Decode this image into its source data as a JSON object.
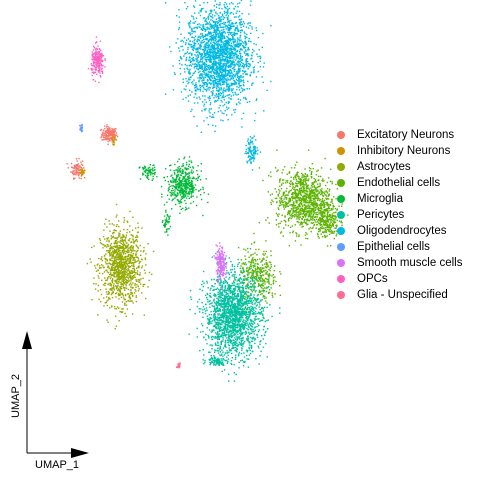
{
  "chart_data": {
    "type": "scatter",
    "xlabel": "UMAP_1",
    "ylabel": "UMAP_2",
    "grid": false,
    "legend_position": "right",
    "series": [
      {
        "name": "Excitatory Neurons",
        "color": "#F8766D",
        "clusters": [
          {
            "cx": -7.8,
            "cy": 6.9,
            "rx": 0.6,
            "ry": 0.6,
            "n": 160
          },
          {
            "cx": -10.6,
            "cy": 3.9,
            "rx": 0.45,
            "ry": 0.7,
            "n": 90
          }
        ]
      },
      {
        "name": "Inhibitory Neurons",
        "color": "#D39200",
        "clusters": [
          {
            "cx": -10.1,
            "cy": 3.6,
            "rx": 0.2,
            "ry": 0.3,
            "n": 25
          },
          {
            "cx": -7.4,
            "cy": 6.4,
            "rx": 0.2,
            "ry": 0.3,
            "n": 20
          }
        ]
      },
      {
        "name": "Astrocytes",
        "color": "#93AA00",
        "clusters": [
          {
            "cx": -6.8,
            "cy": -4.6,
            "rx": 1.6,
            "ry": 3.0,
            "n": 1100
          }
        ]
      },
      {
        "name": "Endothelial cells",
        "color": "#5BB300",
        "clusters": [
          {
            "cx": 8.8,
            "cy": 1.2,
            "rx": 2.1,
            "ry": 2.4,
            "n": 1000
          },
          {
            "cx": 10.8,
            "cy": -0.6,
            "rx": 0.9,
            "ry": 1.3,
            "n": 250
          },
          {
            "cx": 4.9,
            "cy": -5.5,
            "rx": 1.5,
            "ry": 2.1,
            "n": 350
          }
        ]
      },
      {
        "name": "Microglia",
        "color": "#00BA38",
        "clusters": [
          {
            "cx": -1.5,
            "cy": 2.5,
            "rx": 1.2,
            "ry": 1.6,
            "n": 450
          },
          {
            "cx": -4.5,
            "cy": 3.6,
            "rx": 0.6,
            "ry": 0.6,
            "n": 70
          },
          {
            "cx": -2.9,
            "cy": -0.8,
            "rx": 0.3,
            "ry": 0.8,
            "n": 40
          }
        ]
      },
      {
        "name": "Pericytes",
        "color": "#00C19F",
        "clusters": [
          {
            "cx": 2.8,
            "cy": -8.8,
            "rx": 2.2,
            "ry": 3.2,
            "n": 1800
          },
          {
            "cx": 1.4,
            "cy": -12.8,
            "rx": 0.8,
            "ry": 0.35,
            "n": 80
          }
        ]
      },
      {
        "name": "Oligodendrocytes",
        "color": "#00B9E3",
        "clusters": [
          {
            "cx": 1.5,
            "cy": 13.7,
            "rx": 2.5,
            "ry": 4.0,
            "n": 2200
          },
          {
            "cx": 4.4,
            "cy": 5.5,
            "rx": 0.5,
            "ry": 1.0,
            "n": 100
          }
        ]
      },
      {
        "name": "Epithelial cells",
        "color": "#619CFF",
        "clusters": [
          {
            "cx": -10.2,
            "cy": 7.4,
            "rx": 0.12,
            "ry": 0.35,
            "n": 25
          }
        ]
      },
      {
        "name": "Smooth muscle cells",
        "color": "#DB72FB",
        "clusters": [
          {
            "cx": 1.7,
            "cy": -4.3,
            "rx": 0.35,
            "ry": 1.3,
            "n": 200
          }
        ]
      },
      {
        "name": "OPCs",
        "color": "#FF61C3",
        "clusters": [
          {
            "cx": -8.8,
            "cy": 13.2,
            "rx": 0.5,
            "ry": 1.2,
            "n": 220
          }
        ]
      },
      {
        "name": "Glia - Unspecified",
        "color": "#FF6C91",
        "clusters": [
          {
            "cx": -1.9,
            "cy": -13.2,
            "rx": 0.2,
            "ry": 0.2,
            "n": 20
          }
        ]
      }
    ]
  }
}
